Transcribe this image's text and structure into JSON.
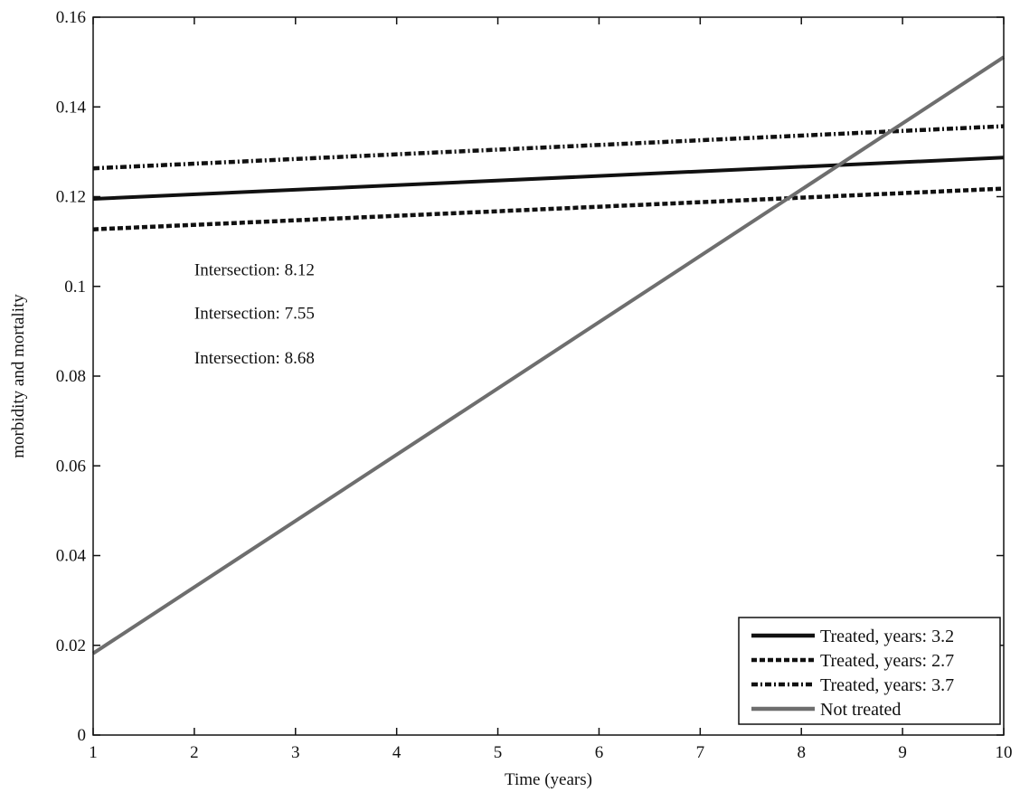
{
  "chart_data": {
    "type": "line",
    "title": "",
    "xlabel": "Time (years)",
    "ylabel": "morbidity and mortality",
    "xlim": [
      1,
      10
    ],
    "ylim": [
      0,
      0.16
    ],
    "xticks": [
      1,
      2,
      3,
      4,
      5,
      6,
      7,
      8,
      9,
      10
    ],
    "yticks": [
      0,
      0.02,
      0.04,
      0.06,
      0.08,
      0.1,
      0.12,
      0.14,
      0.16
    ],
    "ytick_labels": [
      "0",
      "0.02",
      "0.04",
      "0.06",
      "0.08",
      "0.1",
      "0.12",
      "0.14",
      "0.16"
    ],
    "grid": false,
    "legend_position": "bottom-right",
    "series": [
      {
        "name": "Treated, years: 3.2",
        "x": [
          1,
          10
        ],
        "y": [
          0.1195,
          0.1287
        ],
        "style": "solid",
        "color": "#111111"
      },
      {
        "name": "Treated, years: 2.7",
        "x": [
          1,
          10
        ],
        "y": [
          0.1127,
          0.1218
        ],
        "style": "dashed",
        "color": "#111111"
      },
      {
        "name": "Treated, years: 3.7",
        "x": [
          1,
          10
        ],
        "y": [
          0.1263,
          0.1357
        ],
        "style": "dashdot",
        "color": "#111111"
      },
      {
        "name": "Not treated",
        "x": [
          1,
          10
        ],
        "y": [
          0.0182,
          0.1511
        ],
        "style": "solid",
        "color": "#6e6e6e"
      }
    ],
    "annotations": [
      {
        "text": "Intersection: 8.12",
        "x": 2,
        "y": 0.1025
      },
      {
        "text": "Intersection: 7.55",
        "x": 2,
        "y": 0.0928
      },
      {
        "text": "Intersection: 8.68",
        "x": 2,
        "y": 0.0828
      }
    ]
  }
}
